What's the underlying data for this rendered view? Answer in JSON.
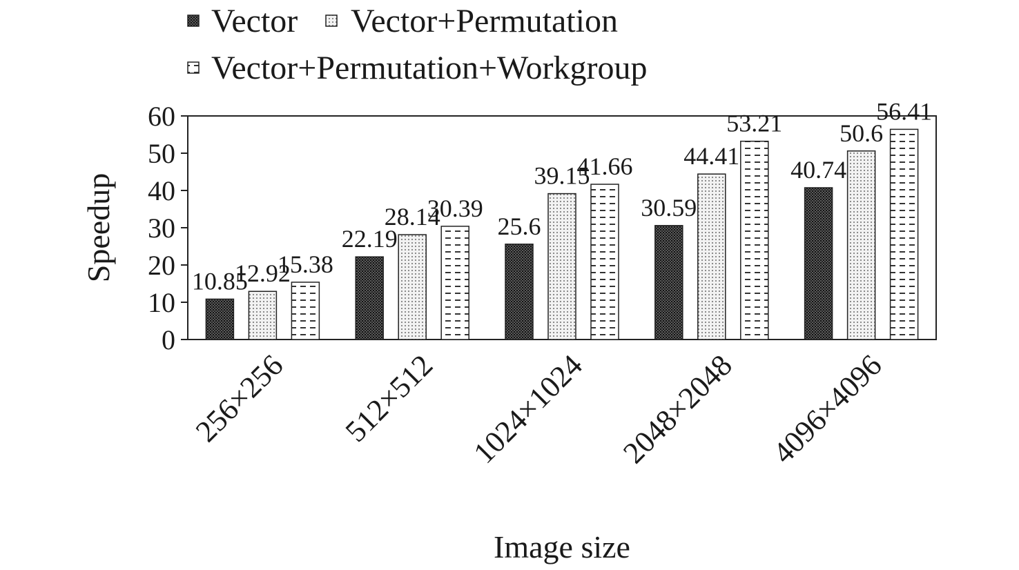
{
  "chart_data": {
    "type": "bar",
    "xlabel": "Image size",
    "ylabel": "Speedup",
    "ylim": [
      0,
      60
    ],
    "yticks": [
      0,
      10,
      20,
      30,
      40,
      50,
      60
    ],
    "grid": false,
    "legend_position": "top",
    "categories": [
      "256×256",
      "512×512",
      "1024×1024",
      "2048×2048",
      "4096×4096"
    ],
    "series": [
      {
        "name": "Vector",
        "values": [
          10.85,
          22.19,
          25.6,
          30.59,
          40.74
        ],
        "labels": [
          "10.85",
          "22.19",
          "25.6",
          "30.59",
          "40.74"
        ],
        "pattern": "dense-dots"
      },
      {
        "name": "Vector+Permutation",
        "values": [
          12.92,
          28.14,
          39.15,
          44.41,
          50.6
        ],
        "labels": [
          "12.92",
          "28.14",
          "39.15",
          "44.41",
          "50.6"
        ],
        "pattern": "light-dots"
      },
      {
        "name": "Vector+Permutation+Workgroup",
        "values": [
          15.38,
          30.39,
          41.66,
          53.21,
          56.41
        ],
        "labels": [
          "15.38",
          "30.39",
          "41.66",
          "53.21",
          "56.41"
        ],
        "pattern": "dashes"
      }
    ]
  }
}
